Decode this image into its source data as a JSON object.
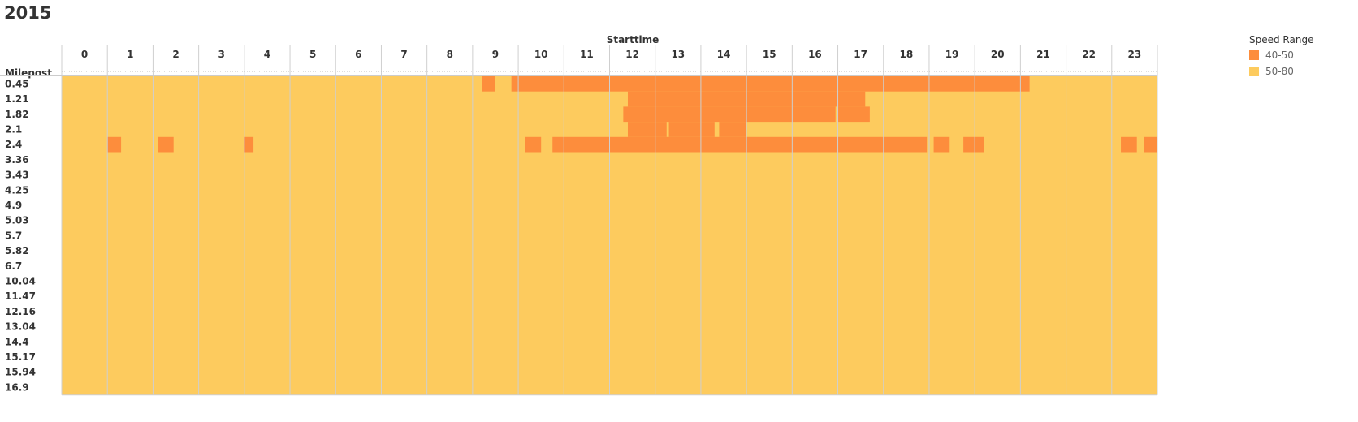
{
  "title": "2015",
  "chart_data": {
    "type": "heatmap",
    "title": "2015",
    "x_axis_title": "Starttime",
    "y_axis_title": "Milepost",
    "x_labels": [
      "0",
      "1",
      "2",
      "3",
      "4",
      "5",
      "6",
      "7",
      "8",
      "9",
      "10",
      "11",
      "12",
      "13",
      "14",
      "15",
      "16",
      "17",
      "18",
      "19",
      "20",
      "21",
      "22",
      "23"
    ],
    "y_labels": [
      "0.45",
      "1.21",
      "1.82",
      "2.1",
      "2.4",
      "3.36",
      "3.43",
      "4.25",
      "4.9",
      "5.03",
      "5.7",
      "5.82",
      "6.7",
      "10.04",
      "11.47",
      "12.16",
      "13.04",
      "14.4",
      "15.17",
      "15.94",
      "16.9"
    ],
    "legend_title": "Speed Range",
    "categories": [
      {
        "label": "40-50",
        "color": "#fd8d3c"
      },
      {
        "label": "50-80",
        "color": "#fdcb5e"
      }
    ],
    "default_category": "50-80",
    "highlight_category": "40-50",
    "highlighted_intervals": [
      {
        "milepost": "0.45",
        "intervals": [
          [
            9.2,
            9.5
          ],
          [
            9.85,
            21.2
          ]
        ]
      },
      {
        "milepost": "1.21",
        "intervals": [
          [
            12.4,
            17.6
          ]
        ]
      },
      {
        "milepost": "1.82",
        "intervals": [
          [
            12.3,
            16.95
          ],
          [
            17.0,
            17.7
          ]
        ]
      },
      {
        "milepost": "2.1",
        "intervals": [
          [
            12.4,
            13.25
          ],
          [
            13.3,
            14.3
          ],
          [
            14.4,
            15.0
          ]
        ]
      },
      {
        "milepost": "2.4",
        "intervals": [
          [
            1.0,
            1.3
          ],
          [
            2.1,
            2.45
          ],
          [
            4.0,
            4.2
          ],
          [
            10.15,
            10.5
          ],
          [
            10.75,
            18.95
          ],
          [
            19.1,
            19.45
          ],
          [
            19.75,
            20.2
          ],
          [
            23.2,
            23.55
          ],
          [
            23.7,
            24.0
          ]
        ]
      }
    ]
  }
}
